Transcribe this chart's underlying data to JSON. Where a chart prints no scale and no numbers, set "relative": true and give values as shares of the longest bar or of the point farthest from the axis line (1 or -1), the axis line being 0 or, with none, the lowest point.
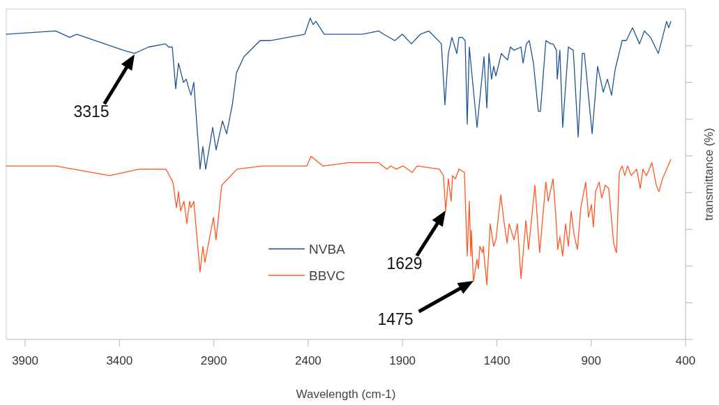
{
  "chart_data": {
    "type": "line",
    "relative": true,
    "xlabel": "Wavelength (cm-1)",
    "ylabel": "transmittance (%)",
    "xlim": [
      4000,
      400
    ],
    "xticks": [
      3900,
      3400,
      2900,
      2400,
      1900,
      1400,
      900,
      400
    ],
    "legend": "bottom",
    "grid": false,
    "marker": "none",
    "line_style": "solid",
    "series": [
      {
        "name": "NVBA",
        "color": "#1b5592",
        "x": [
          4000,
          3738,
          3664,
          3627,
          3379,
          3320,
          3246,
          3157,
          3139,
          3120,
          3102,
          3087,
          3061,
          3046,
          3032,
          3021,
          3006,
          2973,
          2958,
          2943,
          2906,
          2888,
          2854,
          2832,
          2802,
          2780,
          2740,
          2655,
          2603,
          2418,
          2389,
          2374,
          2359,
          2315,
          2112,
          2026,
          2000,
          1941,
          1901,
          1853,
          1805,
          1760,
          1694,
          1675,
          1657,
          1638,
          1612,
          1601,
          1583,
          1568,
          1557,
          1546,
          1505,
          1468,
          1453,
          1442,
          1428,
          1417,
          1405,
          1376,
          1361,
          1343,
          1328,
          1309,
          1272,
          1261,
          1243,
          1228,
          1206,
          1180,
          1169,
          1140,
          1114,
          1102,
          1084,
          1080,
          1066,
          1051,
          1021,
          995,
          969,
          947,
          936,
          903,
          895,
          866,
          836,
          814,
          792,
          773,
          736,
          714,
          681,
          644,
          618,
          585,
          544,
          500,
          489,
          478
        ],
        "values": [
          0.95,
          0.96,
          0.94,
          0.95,
          0.9,
          0.89,
          0.91,
          0.92,
          0.91,
          0.91,
          0.78,
          0.86,
          0.8,
          0.81,
          0.78,
          0.76,
          0.8,
          0.53,
          0.6,
          0.53,
          0.66,
          0.59,
          0.68,
          0.64,
          0.73,
          0.83,
          0.88,
          0.93,
          0.93,
          0.95,
          1.0,
          0.98,
          0.99,
          0.95,
          0.95,
          0.96,
          0.95,
          0.93,
          0.95,
          0.92,
          0.95,
          0.96,
          0.92,
          0.73,
          0.89,
          0.94,
          0.89,
          0.94,
          0.94,
          0.93,
          0.67,
          0.91,
          0.66,
          0.88,
          0.72,
          0.89,
          0.81,
          0.85,
          0.82,
          0.89,
          0.88,
          0.87,
          0.91,
          0.9,
          0.91,
          0.86,
          0.92,
          0.93,
          0.86,
          0.71,
          0.71,
          0.93,
          0.92,
          0.92,
          0.9,
          0.81,
          0.9,
          0.66,
          0.91,
          0.9,
          0.63,
          0.89,
          0.89,
          0.69,
          0.64,
          0.85,
          0.77,
          0.81,
          0.76,
          0.84,
          0.93,
          0.93,
          0.97,
          0.92,
          0.96,
          0.94,
          0.89,
          0.99,
          0.97,
          0.99
        ]
      },
      {
        "name": "BBVC",
        "color": "#ff5722",
        "x": [
          4000,
          3738,
          3453,
          3294,
          3154,
          3117,
          3098,
          3087,
          3076,
          3058,
          3043,
          3028,
          3021,
          3006,
          2973,
          2958,
          2947,
          2902,
          2888,
          2858,
          2777,
          2640,
          2407,
          2385,
          2322,
          2185,
          2026,
          1982,
          1963,
          1934,
          1897,
          1849,
          1823,
          1705,
          1683,
          1671,
          1657,
          1642,
          1635,
          1620,
          1601,
          1572,
          1557,
          1546,
          1538,
          1535,
          1524,
          1505,
          1498,
          1490,
          1476,
          1472,
          1453,
          1435,
          1417,
          1405,
          1379,
          1365,
          1346,
          1335,
          1309,
          1291,
          1272,
          1246,
          1232,
          1198,
          1173,
          1140,
          1128,
          1102,
          1088,
          1077,
          1066,
          1051,
          1036,
          1021,
          1006,
          992,
          973,
          955,
          929,
          914,
          899,
          888,
          877,
          858,
          844,
          825,
          807,
          781,
          766,
          751,
          736,
          722,
          707,
          688,
          659,
          640,
          626,
          607,
          578,
          555,
          541,
          522,
          478
        ],
        "values": [
          0.54,
          0.54,
          0.51,
          0.53,
          0.53,
          0.49,
          0.41,
          0.46,
          0.4,
          0.43,
          0.36,
          0.43,
          0.41,
          0.43,
          0.21,
          0.29,
          0.24,
          0.38,
          0.31,
          0.48,
          0.53,
          0.54,
          0.54,
          0.57,
          0.54,
          0.55,
          0.55,
          0.53,
          0.54,
          0.53,
          0.54,
          0.52,
          0.54,
          0.53,
          0.51,
          0.4,
          0.5,
          0.43,
          0.51,
          0.5,
          0.53,
          0.52,
          0.26,
          0.43,
          0.26,
          0.34,
          0.18,
          0.25,
          0.22,
          0.29,
          0.27,
          0.29,
          0.17,
          0.36,
          0.29,
          0.31,
          0.45,
          0.38,
          0.3,
          0.36,
          0.31,
          0.36,
          0.19,
          0.37,
          0.28,
          0.48,
          0.27,
          0.49,
          0.43,
          0.5,
          0.39,
          0.28,
          0.32,
          0.26,
          0.36,
          0.29,
          0.4,
          0.33,
          0.28,
          0.41,
          0.49,
          0.38,
          0.42,
          0.35,
          0.46,
          0.49,
          0.44,
          0.48,
          0.47,
          0.3,
          0.27,
          0.52,
          0.54,
          0.51,
          0.54,
          0.51,
          0.53,
          0.47,
          0.53,
          0.51,
          0.55,
          0.48,
          0.46,
          0.5,
          0.56
        ]
      }
    ],
    "annotations": [
      "3315",
      "1629",
      "1475"
    ]
  }
}
